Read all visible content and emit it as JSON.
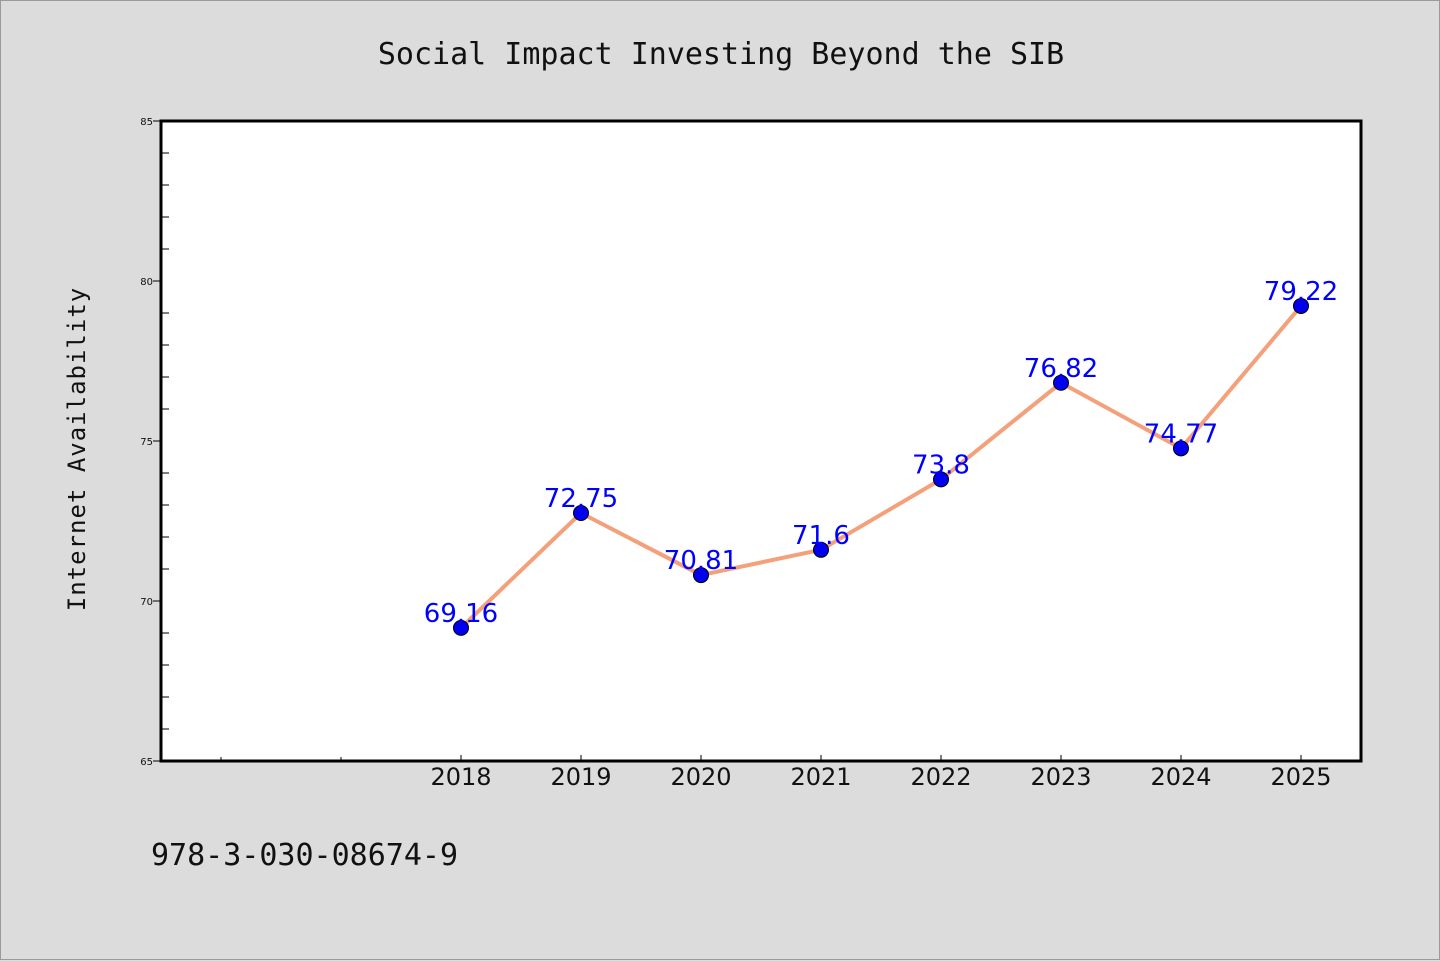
{
  "chart_data": {
    "type": "line",
    "title": "Social Impact Investing Beyond the SIB",
    "xlabel": "",
    "ylabel": "Internet Availability",
    "categories": [
      "2018",
      "2019",
      "2020",
      "2021",
      "2022",
      "2023",
      "2024",
      "2025"
    ],
    "values": [
      69.16,
      72.75,
      70.81,
      71.6,
      73.8,
      76.82,
      74.77,
      79.22
    ],
    "data_labels": [
      "69.16",
      "72.75",
      "70.81",
      "71.6",
      "73.8",
      "76.82",
      "74.77",
      "79.22"
    ],
    "ylim": [
      65,
      85
    ],
    "yticks": [
      65,
      70,
      75,
      80,
      85
    ],
    "grid": false,
    "legend": "none",
    "line_color": "#f4a07a",
    "marker_color": "#0000ee",
    "label_color": "#0000ff",
    "background_color": "#dcdcdc",
    "plot_background": "#ffffff"
  },
  "footer": {
    "text": "978-3-030-08674-9"
  }
}
